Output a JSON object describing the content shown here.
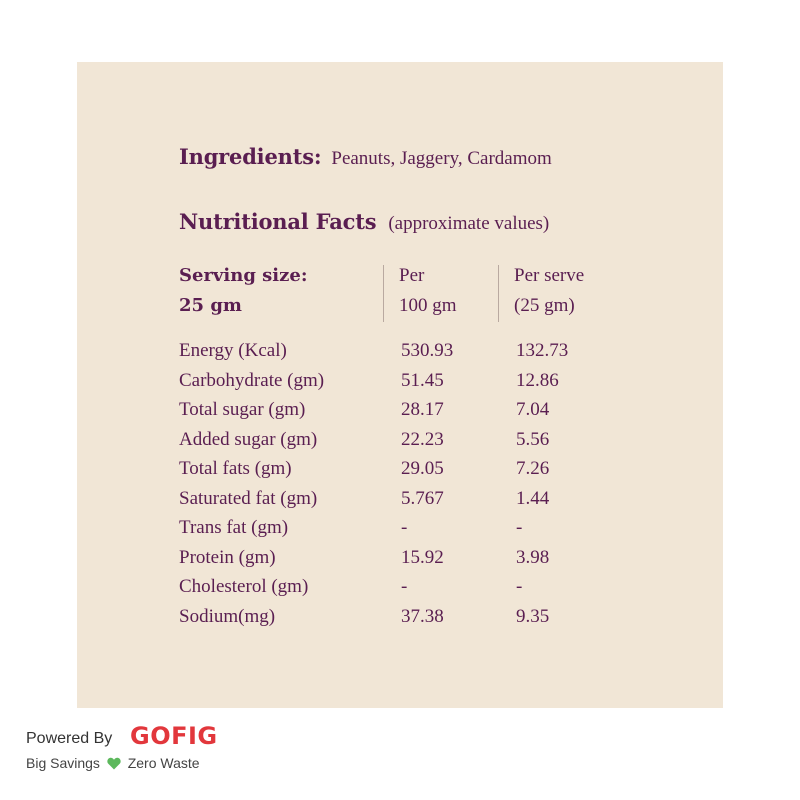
{
  "ingredients": {
    "label": "Ingredients:",
    "text": "Peanuts, Jaggery, Cardamom"
  },
  "facts": {
    "title": "Nutritional Facts",
    "subtitle": "(approximate values)",
    "serving_line1": "Serving size:",
    "serving_line2": "25 gm",
    "col1_line1": "Per",
    "col1_line2": "100 gm",
    "col2_line1": "Per serve",
    "col2_line2": "(25 gm)",
    "rows": [
      {
        "name": "Energy (Kcal)",
        "per100": "530.93",
        "perserve": "132.73"
      },
      {
        "name": "Carbohydrate (gm)",
        "per100": "51.45",
        "perserve": "12.86"
      },
      {
        "name": "Total sugar (gm)",
        "per100": "28.17",
        "perserve": "7.04"
      },
      {
        "name": "Added sugar (gm)",
        "per100": "22.23",
        "perserve": "5.56"
      },
      {
        "name": "Total fats (gm)",
        "per100": "29.05",
        "perserve": "7.26"
      },
      {
        "name": "Saturated fat (gm)",
        "per100": "5.767",
        "perserve": "1.44"
      },
      {
        "name": "Trans fat (gm)",
        "per100": "-",
        "perserve": "-"
      },
      {
        "name": "Protein (gm)",
        "per100": "15.92",
        "perserve": "3.98"
      },
      {
        "name": "Cholesterol (gm)",
        "per100": "-",
        "perserve": "-"
      },
      {
        "name": "Sodium(mg)",
        "per100": "37.38",
        "perserve": "9.35"
      }
    ]
  },
  "footer": {
    "powered_by": "Powered By",
    "brand": "GOFIG",
    "tagline_left": "Big Savings",
    "tagline_right": "Zero Waste",
    "heart_icon": "green-heart-icon",
    "heart_color": "#5cb85c"
  },
  "colors": {
    "card_bg": "#f1e6d6",
    "text_purple": "#5a1e51",
    "brand_red": "#e2373c"
  }
}
